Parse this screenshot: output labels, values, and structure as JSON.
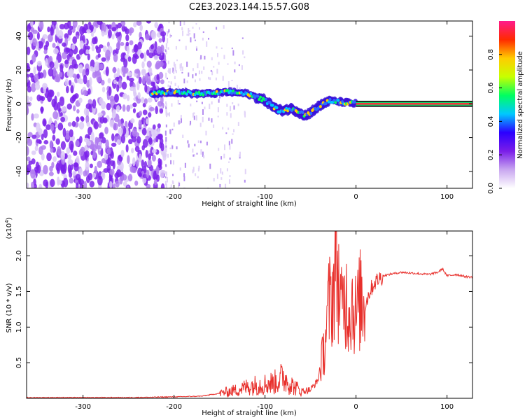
{
  "title": "C2E3.2023.144.15.57.G08",
  "chart_data": [
    {
      "type": "heatmap",
      "xlabel": "Height of straight line (km)",
      "ylabel": "Frequency (Hz)",
      "xlim": [
        -362,
        128
      ],
      "ylim": [
        -50,
        49
      ],
      "xticks": [
        -300,
        -200,
        -100,
        0,
        100
      ],
      "yticks": [
        -40,
        -20,
        0,
        20,
        40
      ],
      "colorbar": {
        "label": "Normalized spectral amplitude",
        "range": [
          0,
          1
        ],
        "ticks": [
          0.0,
          0.2,
          0.4,
          0.6,
          0.8
        ],
        "colors": [
          "#ffffff",
          "#c9a7f0",
          "#7a1de8",
          "#2b00ff",
          "#00c8ff",
          "#00ff60",
          "#c8ff00",
          "#ffcc00",
          "#ff2a00",
          "#ff1a8c"
        ]
      },
      "signal_ridge": [
        {
          "x": -225,
          "f": 6
        },
        {
          "x": -200,
          "f": 7
        },
        {
          "x": -180,
          "f": 6
        },
        {
          "x": -160,
          "f": 6
        },
        {
          "x": -140,
          "f": 7
        },
        {
          "x": -120,
          "f": 6
        },
        {
          "x": -100,
          "f": 2
        },
        {
          "x": -85,
          "f": -4
        },
        {
          "x": -70,
          "f": -3
        },
        {
          "x": -55,
          "f": -7
        },
        {
          "x": -45,
          "f": -3
        },
        {
          "x": -30,
          "f": 2
        },
        {
          "x": -15,
          "f": 1
        },
        {
          "x": 0,
          "f": 0
        },
        {
          "x": 128,
          "f": 0
        }
      ],
      "description_regions": {
        "noise_region_x": [
          -362,
          -210
        ],
        "sparse_noise_x": [
          -210,
          -120
        ],
        "steady_tone_x": [
          0,
          128
        ]
      }
    },
    {
      "type": "line",
      "xlabel": "Height of straight line (km)",
      "ylabel": "SNR (10 * v/v)",
      "y_multiplier": "(x10",
      "y_multiplier_exp": "4",
      "y_multiplier_close": ")",
      "xlim": [
        -362,
        128
      ],
      "ylim": [
        0,
        2.35
      ],
      "xticks": [
        -300,
        -200,
        -100,
        0,
        100
      ],
      "yticks": [
        0.5,
        1.0,
        1.5,
        2.0
      ],
      "color": "#e8302c",
      "series": [
        {
          "x": [
            -362,
            -300,
            -250,
            -200,
            -170,
            -150,
            -130,
            -115,
            -100,
            -90,
            -80,
            -70,
            -60,
            -50,
            -42,
            -35,
            -30,
            -25,
            -22,
            -19,
            -16,
            -12,
            -8,
            -4,
            0,
            5,
            10,
            15,
            20,
            25,
            30,
            40,
            50,
            60,
            70,
            80,
            90,
            95,
            100,
            110,
            120,
            128
          ],
          "values": [
            0.01,
            0.01,
            0.01,
            0.02,
            0.03,
            0.07,
            0.12,
            0.18,
            0.2,
            0.22,
            0.3,
            0.18,
            0.1,
            0.12,
            0.25,
            0.7,
            1.3,
            1.5,
            2.1,
            1.6,
            1.2,
            1.45,
            1.25,
            1.35,
            1.15,
            1.4,
            1.3,
            1.5,
            1.62,
            1.68,
            1.72,
            1.75,
            1.77,
            1.76,
            1.75,
            1.74,
            1.77,
            1.82,
            1.72,
            1.74,
            1.71,
            1.7
          ]
        }
      ]
    }
  ]
}
